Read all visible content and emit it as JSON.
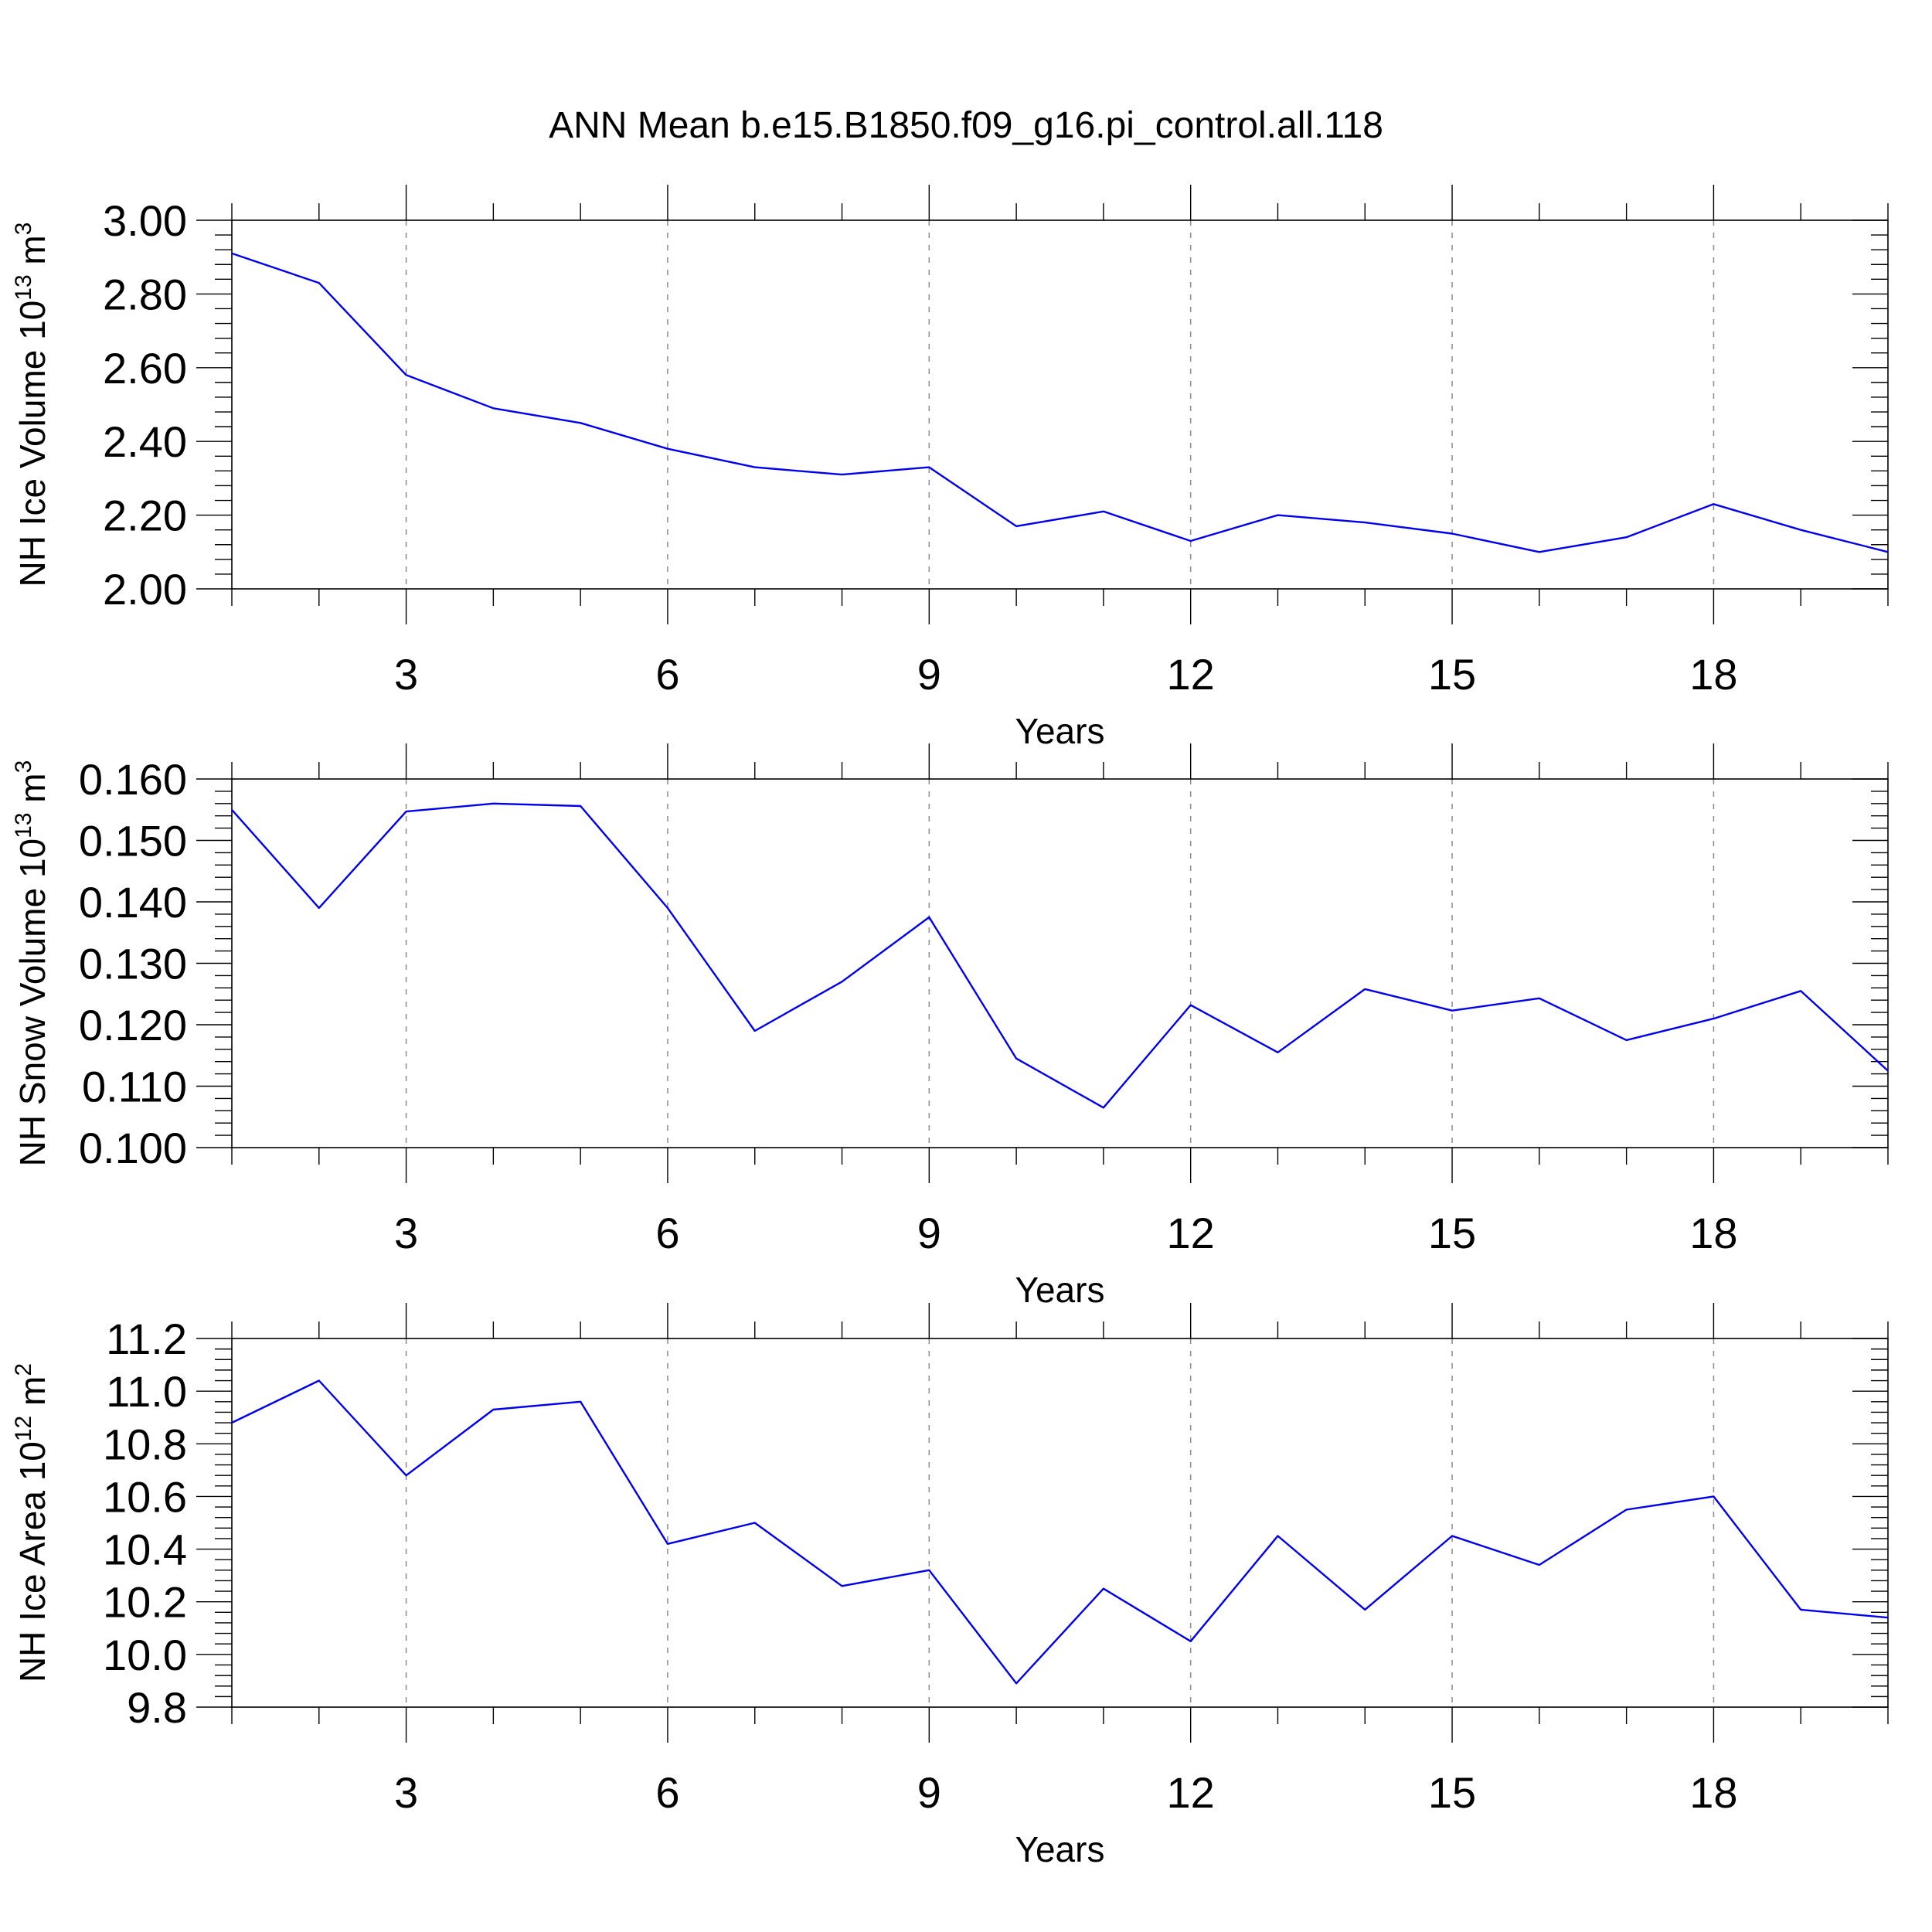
{
  "figure": {
    "title": "ANN Mean b.e15.B1850.f09_g16.pi_control.all.118"
  },
  "chart_data": [
    {
      "type": "line",
      "xlabel": "Years",
      "ylabel": {
        "main": "NH Ice Volume 10",
        "sup": "13",
        "unit": " m",
        "unit_sup": "3"
      },
      "xlim": [
        1,
        20
      ],
      "ylim": [
        2.0,
        3.0
      ],
      "xticks": [
        3,
        6,
        9,
        12,
        15,
        18
      ],
      "yticks": [
        "2.00",
        "2.20",
        "2.40",
        "2.60",
        "2.80",
        "3.00"
      ],
      "grid": "vertical-dashed",
      "series": [
        {
          "color": "#0000ee",
          "x": [
            1,
            2,
            3,
            4,
            5,
            6,
            7,
            8,
            9,
            10,
            11,
            12,
            13,
            14,
            15,
            16,
            17,
            18,
            19,
            20
          ],
          "values": [
            2.91,
            2.83,
            2.58,
            2.49,
            2.45,
            2.38,
            2.33,
            2.31,
            2.33,
            2.17,
            2.21,
            2.13,
            2.2,
            2.18,
            2.15,
            2.1,
            2.14,
            2.23,
            2.16,
            2.1
          ]
        }
      ]
    },
    {
      "type": "line",
      "xlabel": "Years",
      "ylabel": {
        "main": "NH Snow Volume 10",
        "sup": "13",
        "unit": " m",
        "unit_sup": "3"
      },
      "xlim": [
        1,
        20
      ],
      "ylim": [
        0.1,
        0.16
      ],
      "xticks": [
        3,
        6,
        9,
        12,
        15,
        18
      ],
      "yticks": [
        "0.100",
        "0.110",
        "0.120",
        "0.130",
        "0.140",
        "0.150",
        "0.160"
      ],
      "grid": "vertical-dashed",
      "series": [
        {
          "color": "#0000ee",
          "x": [
            1,
            2,
            3,
            4,
            5,
            6,
            7,
            8,
            9,
            10,
            11,
            12,
            13,
            14,
            15,
            16,
            17,
            18,
            19,
            20
          ],
          "values": [
            0.155,
            0.139,
            0.1547,
            0.156,
            0.1556,
            0.139,
            0.119,
            0.127,
            0.1375,
            0.1145,
            0.1065,
            0.1232,
            0.1155,
            0.1258,
            0.1223,
            0.1243,
            0.1175,
            0.121,
            0.1255,
            0.1125
          ]
        }
      ]
    },
    {
      "type": "line",
      "xlabel": "Years",
      "ylabel": {
        "main": "NH Ice Area 10",
        "sup": "12",
        "unit": " m",
        "unit_sup": "2"
      },
      "xlim": [
        1,
        20
      ],
      "ylim": [
        9.8,
        11.2
      ],
      "xticks": [
        3,
        6,
        9,
        12,
        15,
        18
      ],
      "yticks": [
        "9.8",
        "10.0",
        "10.2",
        "10.4",
        "10.6",
        "10.8",
        "11.0",
        "11.2"
      ],
      "grid": "vertical-dashed",
      "series": [
        {
          "color": "#0000ee",
          "x": [
            1,
            2,
            3,
            4,
            5,
            6,
            7,
            8,
            9,
            10,
            11,
            12,
            13,
            14,
            15,
            16,
            17,
            18,
            19,
            20
          ],
          "values": [
            10.88,
            11.04,
            10.68,
            10.93,
            10.96,
            10.42,
            10.5,
            10.26,
            10.32,
            9.89,
            10.25,
            10.05,
            10.45,
            10.17,
            10.45,
            10.34,
            10.55,
            10.6,
            10.17,
            10.14
          ]
        }
      ]
    }
  ]
}
